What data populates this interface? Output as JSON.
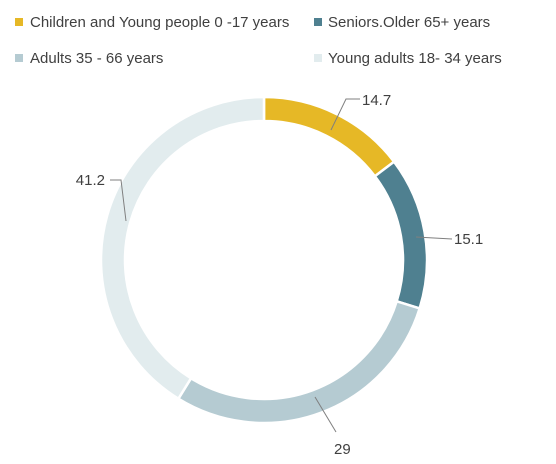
{
  "chart_data": {
    "type": "pie",
    "variant": "donut",
    "title": "",
    "series": [
      {
        "name": "Children and Young people 0 -17 years",
        "value": 14.7,
        "label": "14.7",
        "color": "#E6B826"
      },
      {
        "name": "Seniors.Older 65+ years",
        "value": 15.1,
        "label": "15.1",
        "color": "#4F8090"
      },
      {
        "name": "Adults 35 - 66 years",
        "value": 29,
        "label": "29",
        "color": "#B5CBD2"
      },
      {
        "name": "Young adults 18- 34 years",
        "value": 41.2,
        "label": "41.2",
        "color": "#E2ECEE"
      }
    ],
    "legend": {
      "position": "top"
    },
    "leader_color": "#7F7F7F"
  }
}
